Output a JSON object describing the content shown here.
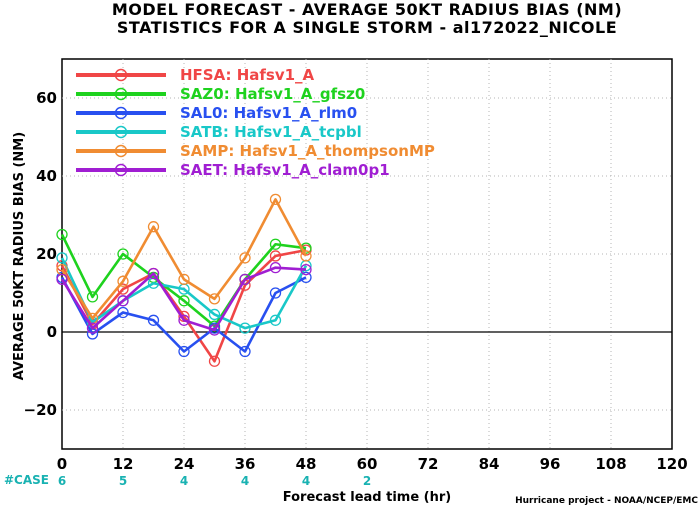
{
  "title_line1": "MODEL FORECAST - AVERAGE 50KT RADIUS BIAS (NM)",
  "title_line2": "STATISTICS FOR A SINGLE STORM - al172022_NICOLE",
  "credit": "Hurricane project - NOAA/NCEP/EMC",
  "case_label": "#CASE",
  "chart_data": {
    "type": "line",
    "xlabel": "Forecast lead time (hr)",
    "ylabel": "AVERAGE 50KT RADIUS BIAS (NM)",
    "xlim": [
      0,
      120
    ],
    "ylim": [
      -30,
      70
    ],
    "xticks": [
      0,
      12,
      24,
      36,
      48,
      60,
      72,
      84,
      96,
      108,
      120
    ],
    "yticks": [
      -20,
      0,
      20,
      40,
      60
    ],
    "grid": true,
    "legend_position": "top-left",
    "cases": {
      "x": [
        0,
        12,
        24,
        36,
        48,
        60
      ],
      "values": [
        "6",
        "5",
        "4",
        "4",
        "4",
        "2"
      ]
    },
    "x": [
      0,
      6,
      12,
      18,
      24,
      30,
      36,
      42,
      48
    ],
    "series": [
      {
        "name": "HFSA: Hafsv1_A",
        "color": "#f04646",
        "values": [
          17,
          2,
          11,
          15,
          4,
          -7.5,
          12,
          19.5,
          21
        ]
      },
      {
        "name": "SAZ0: Hafsv1_A_gfsz0",
        "color": "#1ed21e",
        "values": [
          25,
          9,
          20,
          14,
          8,
          1.5,
          13.5,
          22.5,
          21.5
        ]
      },
      {
        "name": "SAL0: Hafsv1_A_rlm0",
        "color": "#2850f0",
        "values": [
          14,
          -0.5,
          5,
          3,
          -5,
          1,
          -5,
          10,
          14
        ]
      },
      {
        "name": "SATB: Hafsv1_A_tcpbl",
        "color": "#19c8c8",
        "values": [
          19,
          2.5,
          8,
          12.5,
          11,
          4.5,
          1,
          3,
          17
        ]
      },
      {
        "name": "SAMP: Hafsv1_A_thompsonMP",
        "color": "#f08c32",
        "values": [
          16,
          3.5,
          13,
          27,
          13.5,
          8.5,
          19,
          34,
          19.5
        ]
      },
      {
        "name": "SAET: Hafsv1_A_clam0p1",
        "color": "#a01ed2",
        "values": [
          13.5,
          1,
          8,
          15,
          3,
          0.5,
          13.5,
          16.5,
          16
        ]
      }
    ]
  }
}
